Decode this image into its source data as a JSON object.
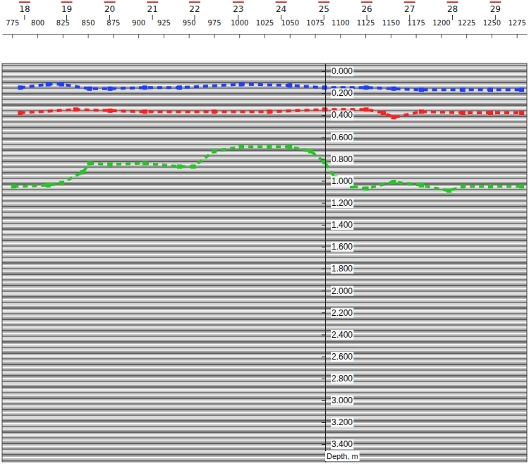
{
  "chart_data": {
    "type": "line",
    "xlim": [
      765,
      1285
    ],
    "xticks": [
      775,
      800,
      825,
      850,
      875,
      900,
      925,
      950,
      975,
      1000,
      1025,
      1050,
      1075,
      1100,
      1125,
      1150,
      1175,
      1200,
      1225,
      1250,
      1275
    ],
    "ylim": [
      -0.07,
      3.56
    ],
    "yticks": [
      {
        "value": 0,
        "label": "0.000"
      },
      {
        "value": 0.2,
        "label": "0.200"
      },
      {
        "value": 0.4,
        "label": "0.400"
      },
      {
        "value": 0.6,
        "label": "0.600"
      },
      {
        "value": 0.8,
        "label": "0.800"
      },
      {
        "value": 1,
        "label": "1.000"
      },
      {
        "value": 1.2,
        "label": "1.200"
      },
      {
        "value": 1.4,
        "label": "1.400"
      },
      {
        "value": 1.6,
        "label": "1.600"
      },
      {
        "value": 1.8,
        "label": "1.800"
      },
      {
        "value": 2,
        "label": "2.000"
      },
      {
        "value": 2.2,
        "label": "2.200"
      },
      {
        "value": 2.4,
        "label": "2.400"
      },
      {
        "value": 2.6,
        "label": "2.600"
      },
      {
        "value": 2.8,
        "label": "2.800"
      },
      {
        "value": 3,
        "label": "3.000"
      },
      {
        "value": 3.2,
        "label": "3.200"
      },
      {
        "value": 3.4,
        "label": "3.400"
      }
    ],
    "y_label": "Depth, m",
    "markers": {
      "labels": [
        18,
        19,
        20,
        21,
        22,
        23,
        24,
        25,
        26,
        27,
        28,
        29
      ],
      "x": [
        787.3,
        829,
        871.6,
        914,
        955.8,
        999,
        1041.5,
        1083.9,
        1126.4,
        1168.8,
        1211.3,
        1253.8
      ]
    },
    "series": [
      {
        "color": "#1f3fff",
        "line_style": "dashed",
        "marker": "square",
        "x": [
          783,
          810.6,
          824,
          851.7,
          872,
          906.5,
          940.8,
          1002,
          1050,
          1084.6,
          1125.7,
          1153,
          1180.5,
          1221.6,
          1249,
          1279.8
        ],
        "values": [
          0.15,
          0.12,
          0.12,
          0.16,
          0.16,
          0.15,
          0.15,
          0.12,
          0.13,
          0.15,
          0.15,
          0.16,
          0.17,
          0.17,
          0.17,
          0.17
        ]
      },
      {
        "color": "#ff1f1f",
        "line_style": "dashed",
        "marker": "square",
        "x": [
          783,
          838,
          872,
          906.5,
          975,
          1029.8,
          1084.6,
          1125.7,
          1142.8,
          1153,
          1180.5,
          1221.6,
          1249,
          1279.8
        ],
        "values": [
          0.38,
          0.35,
          0.36,
          0.37,
          0.37,
          0.37,
          0.35,
          0.35,
          0.38,
          0.42,
          0.37,
          0.38,
          0.38,
          0.38
        ]
      },
      {
        "color": "#22c722",
        "line_style": "dashed",
        "marker": "square",
        "x": [
          776.4,
          810.6,
          824,
          845,
          851.7,
          872,
          906.5,
          940.8,
          954.5,
          975,
          1002,
          1029.8,
          1050,
          1070.9,
          1084.6,
          1094.9,
          1112,
          1125.7,
          1153,
          1180.5,
          1207.9,
          1221.6,
          1249,
          1279.8
        ],
        "values": [
          1.05,
          1.04,
          1.02,
          0.92,
          0.84,
          0.85,
          0.84,
          0.87,
          0.87,
          0.73,
          0.69,
          0.69,
          0.69,
          0.73,
          0.83,
          0.97,
          1.05,
          1.07,
          1.01,
          1.04,
          1.09,
          1.05,
          1.05,
          1.05
        ]
      }
    ]
  }
}
